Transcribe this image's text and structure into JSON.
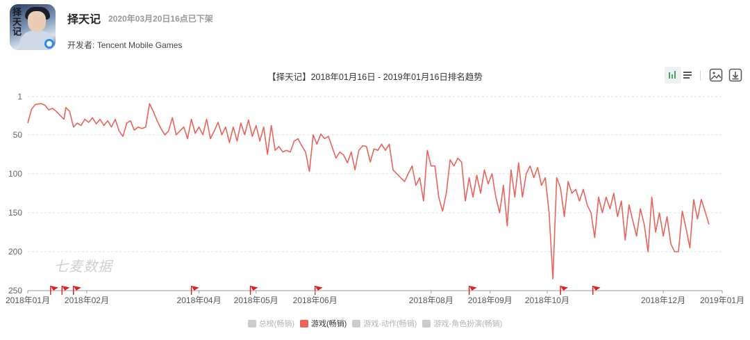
{
  "app": {
    "name": "择天记",
    "status": "2020年03月20日16点已下架",
    "developer_label": "开发者:",
    "developer": "Tencent Mobile Games",
    "icon_glyph": "择天记"
  },
  "toolbar": {
    "icons": [
      "bar-line-toggle-icon",
      "list-icon",
      "image-download-icon",
      "download-icon"
    ]
  },
  "watermark": "七麦数据",
  "colors": {
    "series": "#e8635a",
    "inactive": "#cccccc",
    "grid": "#dddddd",
    "toolbar_accent": "#3fa35b"
  },
  "legend": [
    {
      "name": "总榜(畅销)",
      "active": false
    },
    {
      "name": "游戏(畅销)",
      "active": true
    },
    {
      "name": "游戏-动作(畅销)",
      "active": false
    },
    {
      "name": "游戏-角色扮演(畅销)",
      "active": false
    }
  ],
  "chart_data": {
    "type": "line",
    "title": "【择天记】2018年01月16日 - 2019年01月16日排名趋势",
    "xlabel": "",
    "ylabel": "",
    "y_inverted": true,
    "ylim": [
      1,
      250
    ],
    "y_ticks": [
      1,
      50,
      100,
      150,
      200,
      250
    ],
    "x_range": [
      "2018-01-16",
      "2019-01-16"
    ],
    "x_ticks": [
      {
        "label": "2018年01月",
        "date": "2018-01-16"
      },
      {
        "label": "2018年02月",
        "date": "2018-02-16"
      },
      {
        "label": "2018年04月",
        "date": "2018-04-16"
      },
      {
        "label": "2018年05月",
        "date": "2018-05-16"
      },
      {
        "label": "2018年06月",
        "date": "2018-06-16"
      },
      {
        "label": "2018年08月",
        "date": "2018-08-16"
      },
      {
        "label": "2018年09月",
        "date": "2018-09-16"
      },
      {
        "label": "2018年10月",
        "date": "2018-10-16"
      },
      {
        "label": "2018年12月",
        "date": "2018-12-16"
      },
      {
        "label": "2019年01月",
        "date": "2019-01-16"
      }
    ],
    "grid": true,
    "legend_position": "bottom",
    "markers": [
      "2018-01-28",
      "2018-02-03",
      "2018-02-09",
      "2018-04-12",
      "2018-05-13",
      "2018-06-16",
      "2018-09-05",
      "2018-10-23",
      "2018-11-09"
    ],
    "series": [
      {
        "name": "游戏(畅销)",
        "points": [
          [
            "2018-01-16",
            35
          ],
          [
            "2018-01-18",
            17
          ],
          [
            "2018-01-20",
            11
          ],
          [
            "2018-01-23",
            10
          ],
          [
            "2018-01-25",
            12
          ],
          [
            "2018-01-27",
            18
          ],
          [
            "2018-01-29",
            16
          ],
          [
            "2018-01-31",
            20
          ],
          [
            "2018-02-02",
            25
          ],
          [
            "2018-02-04",
            30
          ],
          [
            "2018-02-05",
            15
          ],
          [
            "2018-02-07",
            20
          ],
          [
            "2018-02-09",
            40
          ],
          [
            "2018-02-11",
            35
          ],
          [
            "2018-02-13",
            38
          ],
          [
            "2018-02-15",
            30
          ],
          [
            "2018-02-17",
            34
          ],
          [
            "2018-02-19",
            28
          ],
          [
            "2018-02-21",
            36
          ],
          [
            "2018-02-23",
            30
          ],
          [
            "2018-02-25",
            38
          ],
          [
            "2018-02-27",
            32
          ],
          [
            "2018-03-01",
            40
          ],
          [
            "2018-03-03",
            30
          ],
          [
            "2018-03-05",
            45
          ],
          [
            "2018-03-07",
            52
          ],
          [
            "2018-03-09",
            35
          ],
          [
            "2018-03-11",
            32
          ],
          [
            "2018-03-13",
            44
          ],
          [
            "2018-03-15",
            40
          ],
          [
            "2018-03-17",
            42
          ],
          [
            "2018-03-19",
            40
          ],
          [
            "2018-03-21",
            10
          ],
          [
            "2018-03-23",
            20
          ],
          [
            "2018-03-25",
            32
          ],
          [
            "2018-03-27",
            42
          ],
          [
            "2018-03-29",
            50
          ],
          [
            "2018-03-31",
            45
          ],
          [
            "2018-04-02",
            28
          ],
          [
            "2018-04-04",
            50
          ],
          [
            "2018-04-06",
            45
          ],
          [
            "2018-04-08",
            40
          ],
          [
            "2018-04-10",
            55
          ],
          [
            "2018-04-12",
            30
          ],
          [
            "2018-04-14",
            48
          ],
          [
            "2018-04-16",
            40
          ],
          [
            "2018-04-18",
            50
          ],
          [
            "2018-04-20",
            30
          ],
          [
            "2018-04-22",
            55
          ],
          [
            "2018-04-24",
            45
          ],
          [
            "2018-04-26",
            34
          ],
          [
            "2018-04-28",
            50
          ],
          [
            "2018-04-30",
            40
          ],
          [
            "2018-05-02",
            60
          ],
          [
            "2018-05-04",
            40
          ],
          [
            "2018-05-06",
            58
          ],
          [
            "2018-05-08",
            35
          ],
          [
            "2018-05-10",
            50
          ],
          [
            "2018-05-12",
            31
          ],
          [
            "2018-05-14",
            52
          ],
          [
            "2018-05-16",
            38
          ],
          [
            "2018-05-18",
            58
          ],
          [
            "2018-05-20",
            40
          ],
          [
            "2018-05-22",
            75
          ],
          [
            "2018-05-24",
            38
          ],
          [
            "2018-05-26",
            70
          ],
          [
            "2018-05-28",
            65
          ],
          [
            "2018-05-30",
            72
          ],
          [
            "2018-06-01",
            70
          ],
          [
            "2018-06-03",
            72
          ],
          [
            "2018-06-05",
            58
          ],
          [
            "2018-06-07",
            55
          ],
          [
            "2018-06-09",
            64
          ],
          [
            "2018-06-11",
            72
          ],
          [
            "2018-06-13",
            97
          ],
          [
            "2018-06-15",
            50
          ],
          [
            "2018-06-17",
            62
          ],
          [
            "2018-06-19",
            49
          ],
          [
            "2018-06-21",
            55
          ],
          [
            "2018-06-23",
            52
          ],
          [
            "2018-06-25",
            66
          ],
          [
            "2018-06-27",
            80
          ],
          [
            "2018-06-29",
            72
          ],
          [
            "2018-07-01",
            76
          ],
          [
            "2018-07-03",
            86
          ],
          [
            "2018-07-05",
            72
          ],
          [
            "2018-07-07",
            95
          ],
          [
            "2018-07-09",
            70
          ],
          [
            "2018-07-11",
            64
          ],
          [
            "2018-07-13",
            65
          ],
          [
            "2018-07-15",
            85
          ],
          [
            "2018-07-17",
            68
          ],
          [
            "2018-07-19",
            70
          ],
          [
            "2018-07-21",
            62
          ],
          [
            "2018-07-23",
            70
          ],
          [
            "2018-07-25",
            62
          ],
          [
            "2018-07-27",
            95
          ],
          [
            "2018-07-29",
            100
          ],
          [
            "2018-07-31",
            105
          ],
          [
            "2018-08-02",
            110
          ],
          [
            "2018-08-04",
            100
          ],
          [
            "2018-08-06",
            90
          ],
          [
            "2018-08-08",
            115
          ],
          [
            "2018-08-10",
            105
          ],
          [
            "2018-08-12",
            135
          ],
          [
            "2018-08-14",
            70
          ],
          [
            "2018-08-16",
            90
          ],
          [
            "2018-08-18",
            90
          ],
          [
            "2018-08-20",
            130
          ],
          [
            "2018-08-22",
            148
          ],
          [
            "2018-08-24",
            125
          ],
          [
            "2018-08-26",
            82
          ],
          [
            "2018-08-28",
            90
          ],
          [
            "2018-08-30",
            80
          ],
          [
            "2018-09-01",
            85
          ],
          [
            "2018-09-03",
            135
          ],
          [
            "2018-09-05",
            105
          ],
          [
            "2018-09-07",
            130
          ],
          [
            "2018-09-09",
            102
          ],
          [
            "2018-09-11",
            125
          ],
          [
            "2018-09-13",
            95
          ],
          [
            "2018-09-15",
            113
          ],
          [
            "2018-09-17",
            100
          ],
          [
            "2018-09-19",
            130
          ],
          [
            "2018-09-21",
            150
          ],
          [
            "2018-09-23",
            115
          ],
          [
            "2018-09-25",
            167
          ],
          [
            "2018-09-27",
            95
          ],
          [
            "2018-09-29",
            130
          ],
          [
            "2018-10-01",
            86
          ],
          [
            "2018-10-03",
            130
          ],
          [
            "2018-10-05",
            100
          ],
          [
            "2018-10-07",
            90
          ],
          [
            "2018-10-09",
            105
          ],
          [
            "2018-10-11",
            92
          ],
          [
            "2018-10-13",
            115
          ],
          [
            "2018-10-15",
            105
          ],
          [
            "2018-10-17",
            150
          ],
          [
            "2018-10-19",
            235
          ],
          [
            "2018-10-21",
            105
          ],
          [
            "2018-10-23",
            118
          ],
          [
            "2018-10-25",
            155
          ],
          [
            "2018-10-27",
            110
          ],
          [
            "2018-10-29",
            125
          ],
          [
            "2018-10-31",
            120
          ],
          [
            "2018-11-02",
            135
          ],
          [
            "2018-11-04",
            120
          ],
          [
            "2018-11-06",
            140
          ],
          [
            "2018-11-08",
            150
          ],
          [
            "2018-11-10",
            182
          ],
          [
            "2018-11-12",
            130
          ],
          [
            "2018-11-14",
            150
          ],
          [
            "2018-11-16",
            130
          ],
          [
            "2018-11-18",
            145
          ],
          [
            "2018-11-20",
            125
          ],
          [
            "2018-11-22",
            155
          ],
          [
            "2018-11-24",
            135
          ],
          [
            "2018-11-26",
            185
          ],
          [
            "2018-11-28",
            140
          ],
          [
            "2018-11-30",
            160
          ],
          [
            "2018-12-02",
            180
          ],
          [
            "2018-12-04",
            145
          ],
          [
            "2018-12-06",
            165
          ],
          [
            "2018-12-08",
            200
          ],
          [
            "2018-12-10",
            130
          ],
          [
            "2018-12-12",
            175
          ],
          [
            "2018-12-14",
            150
          ],
          [
            "2018-12-16",
            180
          ],
          [
            "2018-12-18",
            155
          ],
          [
            "2018-12-20",
            190
          ],
          [
            "2018-12-22",
            200
          ],
          [
            "2018-12-24",
            200
          ],
          [
            "2018-12-26",
            148
          ],
          [
            "2018-12-28",
            170
          ],
          [
            "2018-12-30",
            195
          ],
          [
            "2019-01-01",
            133
          ],
          [
            "2019-01-03",
            158
          ],
          [
            "2019-01-05",
            133
          ],
          [
            "2019-01-07",
            148
          ],
          [
            "2019-01-09",
            165
          ]
        ]
      }
    ]
  }
}
